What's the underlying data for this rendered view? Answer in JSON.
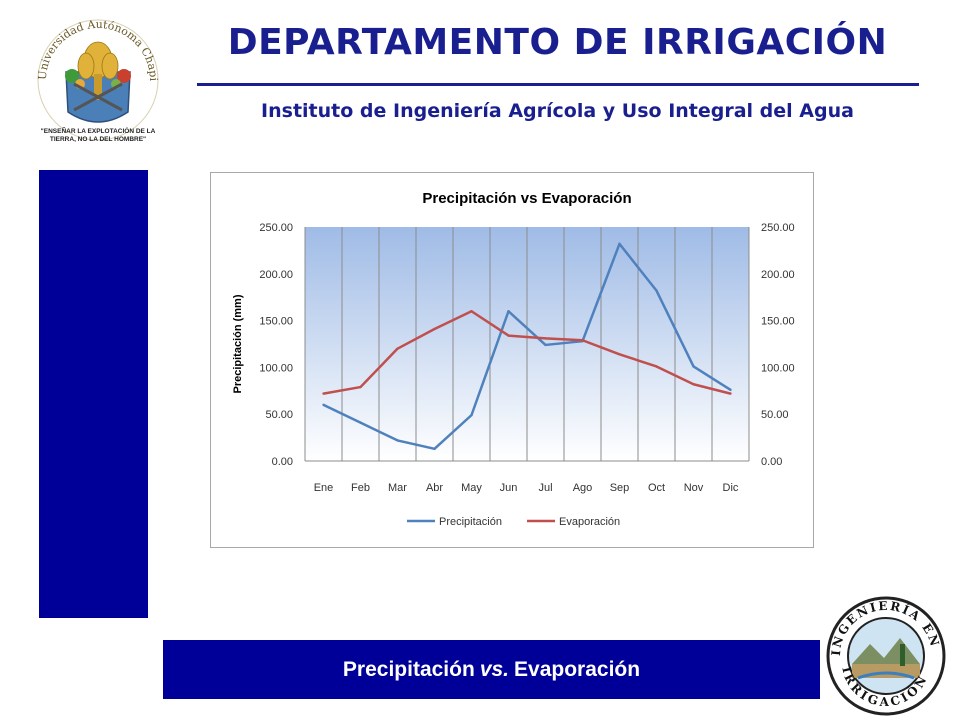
{
  "header": {
    "title": "DEPARTAMENTO DE IRRIGACIÓN",
    "subtitle": "Instituto de Ingeniería Agrícola y Uso Integral del Agua"
  },
  "logo_left": {
    "ring_text": "Universidad Autónoma Chapingo",
    "motto": "\"ENSEÑAR LA EXPLOTACIÓN DE LA TIERRA, NO LA DEL HOMBRE\""
  },
  "logo_right": {
    "top_text": "INGENIERÍA EN",
    "bottom_text": "IRRIGACIÓN"
  },
  "footer": {
    "part1": "Precipitación",
    "part2": "vs.",
    "part3": "Evaporación"
  },
  "colors": {
    "brand_blue": "#000099",
    "title_blue": "#1a1f8f",
    "precip": "#4f81bd",
    "evap": "#c0504d"
  },
  "chart_data": {
    "type": "line",
    "title": "Precipitación vs Evaporación",
    "ylabel": "Precipitación (mm)",
    "xlabel": "",
    "categories": [
      "Ene",
      "Feb",
      "Mar",
      "Abr",
      "May",
      "Jun",
      "Jul",
      "Ago",
      "Sep",
      "Oct",
      "Nov",
      "Dic"
    ],
    "ylim": [
      0,
      250
    ],
    "yticks": [
      "0.00",
      "50.00",
      "100.00",
      "150.00",
      "200.00",
      "250.00"
    ],
    "secondary_yticks": [
      "0.00",
      "50.00",
      "100.00",
      "150.00",
      "200.00",
      "250.00"
    ],
    "grid": "vertical",
    "legend_position": "bottom",
    "series": [
      {
        "name": "Precipitación",
        "values": [
          60,
          41,
          22,
          13,
          49,
          160,
          124,
          128,
          232,
          182,
          101,
          76
        ]
      },
      {
        "name": "Evaporación",
        "values": [
          72,
          79,
          120,
          141,
          160,
          134,
          131,
          129,
          114,
          101,
          82,
          72
        ]
      }
    ]
  }
}
